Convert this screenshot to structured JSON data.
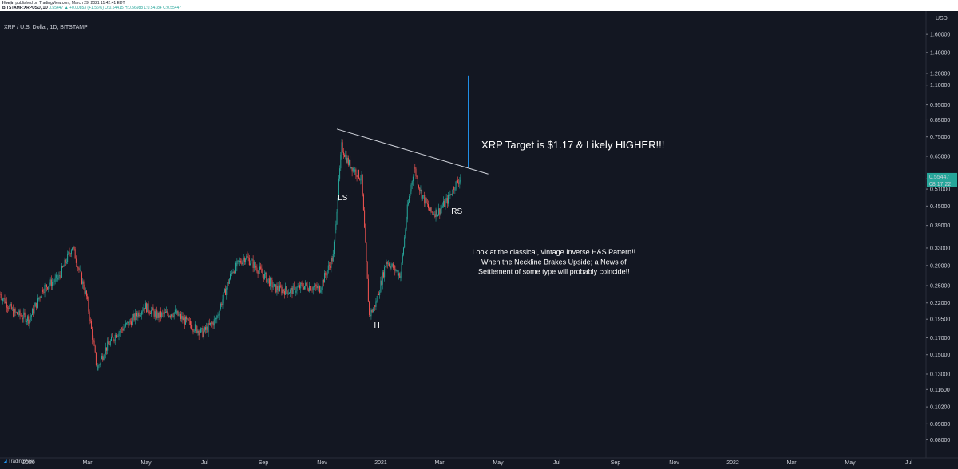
{
  "header": {
    "line1_user": "Heejin",
    "line1_rest": "published on TradingView.com, March 29, 2021 11:42:41 EDT",
    "line2_symbol": "BITSTAMP:XRPUSD, 1D",
    "line2_quote": "0.55447 ▲ +0.00853 (+1.56%) O:0.54415 H:0.56988 L:0.54184 C:0.55447"
  },
  "chart_data": {
    "type": "candlestick",
    "title": "XRP / U.S. Dollar, 1D, BITSTAMP",
    "y_unit": "USD",
    "y_scale": "log",
    "ylim": [
      0.07,
      1.9
    ],
    "y_ticks": [
      "1.60000",
      "1.40000",
      "1.20000",
      "1.10000",
      "0.95000",
      "0.85000",
      "0.75000",
      "0.65000",
      "0.55000",
      "0.51000",
      "0.45000",
      "0.39000",
      "0.33000",
      "0.29000",
      "0.25000",
      "0.22000",
      "0.19500",
      "0.17000",
      "0.15000",
      "0.13000",
      "0.11600",
      "0.10200",
      "0.09000",
      "0.08000"
    ],
    "x_ticks": [
      "2020",
      "Mar",
      "May",
      "Jul",
      "Sep",
      "Nov",
      "2021",
      "Mar",
      "May",
      "Jul",
      "Sep",
      "Nov",
      "2022",
      "Mar",
      "May",
      "Jul"
    ],
    "xlim": [
      "2019-12-01",
      "2022-07-31"
    ],
    "last_price": "0.55447",
    "countdown": "08:17:22",
    "series": [
      {
        "values": [
          [
            "2019-12-01",
            0.235
          ],
          [
            "2019-12-15",
            0.205
          ],
          [
            "2020-01-01",
            0.195
          ],
          [
            "2020-01-15",
            0.245
          ],
          [
            "2020-02-01",
            0.265
          ],
          [
            "2020-02-15",
            0.335
          ],
          [
            "2020-03-01",
            0.23
          ],
          [
            "2020-03-12",
            0.135
          ],
          [
            "2020-03-20",
            0.155
          ],
          [
            "2020-04-01",
            0.175
          ],
          [
            "2020-04-15",
            0.19
          ],
          [
            "2020-05-01",
            0.215
          ],
          [
            "2020-05-15",
            0.2
          ],
          [
            "2020-06-01",
            0.205
          ],
          [
            "2020-06-15",
            0.19
          ],
          [
            "2020-07-01",
            0.176
          ],
          [
            "2020-07-15",
            0.195
          ],
          [
            "2020-08-01",
            0.28
          ],
          [
            "2020-08-15",
            0.31
          ],
          [
            "2020-09-01",
            0.275
          ],
          [
            "2020-09-15",
            0.245
          ],
          [
            "2020-10-01",
            0.24
          ],
          [
            "2020-10-15",
            0.25
          ],
          [
            "2020-11-01",
            0.245
          ],
          [
            "2020-11-15",
            0.31
          ],
          [
            "2020-11-24",
            0.7
          ],
          [
            "2020-12-01",
            0.62
          ],
          [
            "2020-12-15",
            0.55
          ],
          [
            "2020-12-23",
            0.2
          ],
          [
            "2020-12-30",
            0.22
          ],
          [
            "2021-01-10",
            0.3
          ],
          [
            "2021-01-25",
            0.27
          ],
          [
            "2021-02-01",
            0.44
          ],
          [
            "2021-02-08",
            0.6
          ],
          [
            "2021-02-15",
            0.5
          ],
          [
            "2021-02-25",
            0.43
          ],
          [
            "2021-03-05",
            0.43
          ],
          [
            "2021-03-15",
            0.47
          ],
          [
            "2021-03-22",
            0.52
          ],
          [
            "2021-03-29",
            0.55447
          ]
        ]
      }
    ],
    "annotations": [
      {
        "text": "LS",
        "date": "2020-11-25",
        "price": 0.47
      },
      {
        "text": "H",
        "date": "2020-12-31",
        "price": 0.183
      },
      {
        "text": "RS",
        "date": "2021-03-25",
        "price": 0.425
      },
      {
        "text": "XRP Target is $1.17 & Likely HIGHER!!!",
        "date": "2021-07-25",
        "price": 0.69
      },
      {
        "text": "Look at the classical, vintage Inverse H&S Pattern!!",
        "date": "2021-07-05",
        "price": 0.315
      },
      {
        "text": "When the Neckline Brakes Upside; a News of",
        "date": "2021-07-05",
        "price": 0.292
      },
      {
        "text": " Settlement of some type will probably coincide!!",
        "date": "2021-07-05",
        "price": 0.272
      }
    ],
    "neckline": {
      "from": [
        "2020-11-19",
        0.795
      ],
      "to": [
        "2021-04-27",
        0.57
      ]
    },
    "target_line": {
      "date": "2021-04-06",
      "from": 0.6,
      "to": 1.18
    }
  },
  "footer": {
    "brand": "TradingView"
  }
}
